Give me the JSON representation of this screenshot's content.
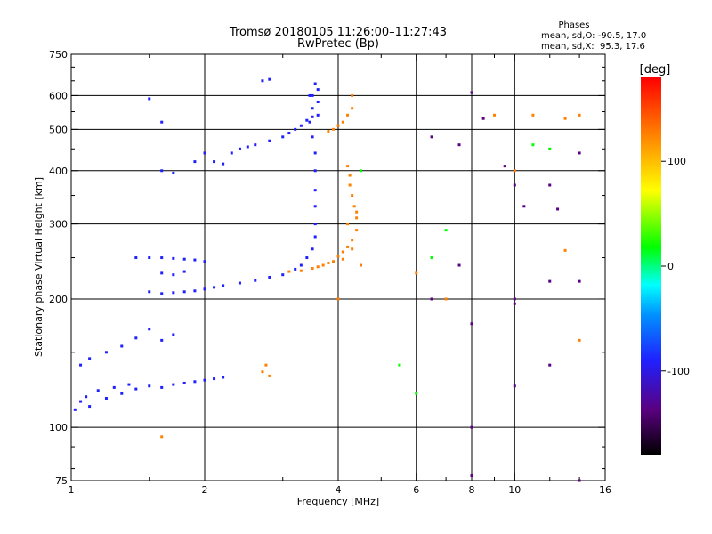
{
  "chart_data": {
    "type": "scatter",
    "title": "Tromsø 20180105 11:26:00–11:27:43",
    "subtitle": "RwPretec (Bp)",
    "stats": {
      "heading": "Phases",
      "line1": "mean, sd,O: -90.5, 17.0",
      "line2": "mean, sd,X:  95.3, 17.6"
    },
    "xlabel": "Frequency [MHz]",
    "ylabel": "Stationary phase Virtual Height [km]",
    "x_scale": "log",
    "y_scale": "log",
    "xlim": [
      1,
      16
    ],
    "ylim": [
      75,
      750
    ],
    "grid": true,
    "x_ticks": [
      1,
      2,
      4,
      6,
      8,
      10,
      16
    ],
    "x_minor_ticks": [
      1.5,
      3,
      5,
      7,
      9,
      12,
      14
    ],
    "x_gridlines": [
      2,
      4,
      6,
      8,
      10
    ],
    "y_ticks": [
      75,
      100,
      200,
      300,
      400,
      500,
      600,
      750
    ],
    "y_minor_ticks": [
      80,
      90,
      150,
      250,
      350,
      450,
      550,
      650,
      700
    ],
    "y_gridlines": [
      100,
      200,
      300,
      400,
      500,
      600
    ],
    "colorbar": {
      "label": "[deg]",
      "range": [
        -180,
        180
      ],
      "ticks": [
        100,
        0,
        -100
      ],
      "colors": [
        "#000000",
        "#5a0080",
        "#2020ff",
        "#0090ff",
        "#00ffff",
        "#00ff00",
        "#ffff00",
        "#ff8000",
        "#ff0000"
      ]
    },
    "series": [
      {
        "phase_deg": -85,
        "points": [
          [
            1.02,
            110
          ],
          [
            1.05,
            115
          ],
          [
            1.08,
            118
          ],
          [
            1.1,
            112
          ],
          [
            1.15,
            122
          ],
          [
            1.2,
            117
          ],
          [
            1.25,
            124
          ],
          [
            1.3,
            120
          ],
          [
            1.35,
            126
          ],
          [
            1.4,
            123
          ],
          [
            1.5,
            125
          ],
          [
            1.6,
            124
          ],
          [
            1.7,
            126
          ],
          [
            1.8,
            127
          ],
          [
            1.9,
            128
          ],
          [
            2.0,
            129
          ],
          [
            2.1,
            130
          ],
          [
            2.2,
            131
          ],
          [
            1.05,
            140
          ],
          [
            1.1,
            145
          ],
          [
            1.2,
            150
          ],
          [
            1.3,
            155
          ],
          [
            1.4,
            162
          ],
          [
            1.5,
            170
          ],
          [
            1.6,
            160
          ],
          [
            1.7,
            165
          ],
          [
            1.5,
            208
          ],
          [
            1.6,
            206
          ],
          [
            1.7,
            207
          ],
          [
            1.8,
            208
          ],
          [
            1.9,
            209
          ],
          [
            2.0,
            211
          ],
          [
            2.1,
            213
          ],
          [
            2.2,
            215
          ],
          [
            2.4,
            218
          ],
          [
            2.6,
            221
          ],
          [
            2.8,
            225
          ],
          [
            3.0,
            228
          ],
          [
            3.2,
            235
          ],
          [
            3.3,
            240
          ],
          [
            3.4,
            250
          ],
          [
            3.5,
            262
          ],
          [
            1.4,
            250
          ],
          [
            1.5,
            250
          ],
          [
            1.6,
            250
          ],
          [
            1.7,
            249
          ],
          [
            1.8,
            248
          ],
          [
            1.9,
            247
          ],
          [
            2.0,
            245
          ],
          [
            1.6,
            230
          ],
          [
            1.7,
            228
          ],
          [
            1.8,
            232
          ],
          [
            1.6,
            400
          ],
          [
            1.7,
            395
          ],
          [
            1.9,
            420
          ],
          [
            2.0,
            440
          ],
          [
            2.1,
            420
          ],
          [
            2.2,
            415
          ],
          [
            2.3,
            440
          ],
          [
            2.4,
            450
          ],
          [
            2.5,
            455
          ],
          [
            2.6,
            460
          ],
          [
            2.8,
            470
          ],
          [
            2.7,
            650
          ],
          [
            2.8,
            655
          ],
          [
            1.5,
            590
          ],
          [
            1.6,
            520
          ],
          [
            3.0,
            480
          ],
          [
            3.1,
            490
          ],
          [
            3.2,
            500
          ],
          [
            3.3,
            510
          ],
          [
            3.4,
            525
          ],
          [
            3.5,
            535
          ],
          [
            3.6,
            540
          ],
          [
            3.45,
            520
          ],
          [
            3.5,
            480
          ],
          [
            3.55,
            440
          ],
          [
            3.55,
            400
          ],
          [
            3.55,
            360
          ],
          [
            3.55,
            330
          ],
          [
            3.55,
            300
          ],
          [
            3.55,
            280
          ],
          [
            3.5,
            560
          ],
          [
            3.5,
            600
          ],
          [
            3.55,
            640
          ],
          [
            3.45,
            600
          ],
          [
            3.6,
            580
          ],
          [
            3.6,
            620
          ]
        ]
      },
      {
        "phase_deg": 100,
        "points": [
          [
            3.1,
            232
          ],
          [
            3.3,
            233
          ],
          [
            3.5,
            236
          ],
          [
            3.7,
            240
          ],
          [
            3.9,
            245
          ],
          [
            4.0,
            252
          ],
          [
            4.1,
            258
          ],
          [
            4.2,
            265
          ],
          [
            4.3,
            275
          ],
          [
            4.4,
            290
          ],
          [
            4.4,
            310
          ],
          [
            4.35,
            330
          ],
          [
            4.3,
            350
          ],
          [
            4.25,
            370
          ],
          [
            4.25,
            390
          ],
          [
            4.2,
            410
          ],
          [
            3.6,
            238
          ],
          [
            3.8,
            243
          ],
          [
            4.1,
            248
          ],
          [
            4.3,
            262
          ],
          [
            4.2,
            300
          ],
          [
            4.4,
            320
          ],
          [
            3.8,
            495
          ],
          [
            3.9,
            500
          ],
          [
            4.0,
            510
          ],
          [
            4.1,
            520
          ],
          [
            4.2,
            540
          ],
          [
            4.3,
            560
          ],
          [
            4.3,
            600
          ],
          [
            2.7,
            135
          ],
          [
            2.8,
            132
          ],
          [
            2.75,
            140
          ],
          [
            1.6,
            95
          ],
          [
            4.0,
            200
          ],
          [
            4.5,
            240
          ],
          [
            7.0,
            200
          ],
          [
            6.0,
            230
          ],
          [
            9.0,
            540
          ],
          [
            11.0,
            540
          ],
          [
            13.0,
            530
          ],
          [
            14.0,
            540
          ],
          [
            10.0,
            400
          ],
          [
            13.0,
            260
          ],
          [
            14.0,
            160
          ]
        ]
      },
      {
        "phase_deg": -110,
        "points": [
          [
            6.5,
            480
          ],
          [
            7.5,
            460
          ],
          [
            8.0,
            610
          ],
          [
            8.5,
            530
          ],
          [
            9.5,
            410
          ],
          [
            10.0,
            370
          ],
          [
            12.0,
            370
          ],
          [
            14.0,
            440
          ],
          [
            7.5,
            240
          ],
          [
            8.0,
            175
          ],
          [
            10.0,
            200
          ],
          [
            10.0,
            195
          ],
          [
            12.0,
            220
          ],
          [
            14.0,
            220
          ],
          [
            6.5,
            200
          ],
          [
            8.0,
            100
          ],
          [
            10.0,
            125
          ],
          [
            12.0,
            140
          ],
          [
            14.0,
            75
          ],
          [
            8.0,
            77
          ],
          [
            10.5,
            330
          ],
          [
            12.5,
            325
          ]
        ]
      },
      {
        "phase_deg": 30,
        "points": [
          [
            5.5,
            140
          ],
          [
            6.0,
            120
          ],
          [
            7.0,
            290
          ],
          [
            11.0,
            460
          ],
          [
            12.0,
            450
          ],
          [
            6.5,
            250
          ],
          [
            4.5,
            400
          ]
        ]
      }
    ]
  }
}
